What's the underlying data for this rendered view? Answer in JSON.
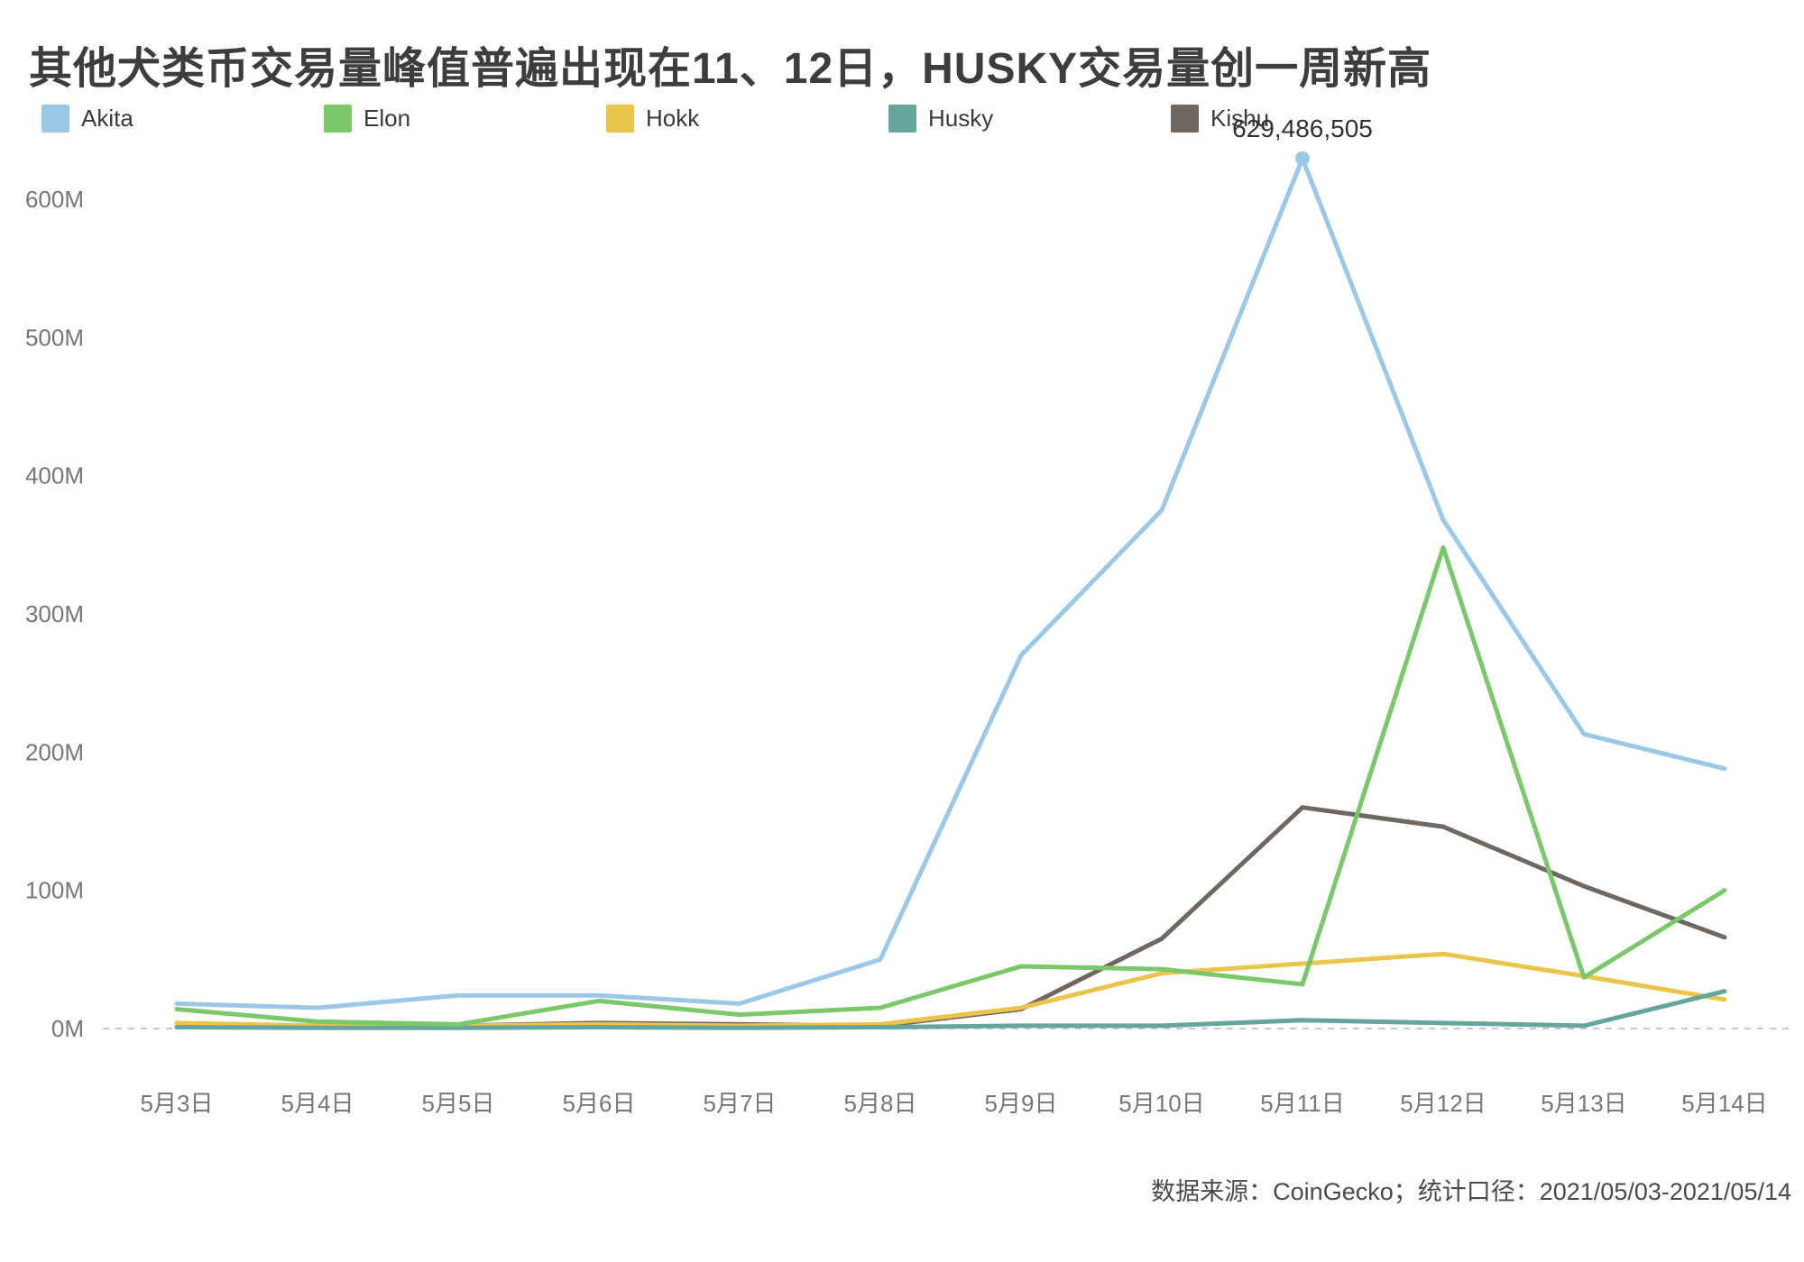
{
  "page": {
    "title": "其他犬类币交易量峰值普遍出现在11、12日，HUSKY交易量创一周新高",
    "source_note": "数据来源：CoinGecko；统计口径：2021/05/03-2021/05/14"
  },
  "chart_data": {
    "type": "line",
    "title": "其他犬类币交易量峰值普遍出现在11、12日，HUSKY交易量创一周新高",
    "unit": "volume (M = millions)",
    "x": [
      "5月3日",
      "5月4日",
      "5月5日",
      "5月6日",
      "5月7日",
      "5月8日",
      "5月9日",
      "5月10日",
      "5月11日",
      "5月12日",
      "5月13日",
      "5月14日"
    ],
    "y_ticks": [
      "0M",
      "100M",
      "200M",
      "300M",
      "400M",
      "500M",
      "600M"
    ],
    "y_tick_values": [
      0,
      100,
      200,
      300,
      400,
      500,
      600
    ],
    "ylim": [
      0,
      650
    ],
    "grid": "zero-dashed-line-only",
    "legend_position": "top",
    "series": [
      {
        "name": "Akita",
        "color": "#9CC8E8",
        "values": [
          18,
          15,
          24,
          24,
          18,
          50,
          270,
          375,
          629.486505,
          368,
          213,
          188
        ]
      },
      {
        "name": "Elon",
        "color": "#7BC86A",
        "values": [
          14,
          5,
          3,
          20,
          10,
          15,
          45,
          43,
          32,
          348,
          37,
          100
        ]
      },
      {
        "name": "Hokk",
        "color": "#E9C54B",
        "values": [
          4,
          2,
          2,
          3,
          2,
          3,
          15,
          40,
          47,
          54,
          38,
          21
        ]
      },
      {
        "name": "Husky",
        "color": "#66A59D",
        "values": [
          1,
          0.5,
          0.5,
          1,
          0.5,
          1,
          2,
          2,
          6,
          4,
          2,
          27
        ]
      },
      {
        "name": "Kishu",
        "color": "#6F6761",
        "values": [
          1,
          1,
          2,
          4,
          3,
          2,
          14,
          65,
          160,
          146,
          103,
          66
        ]
      }
    ],
    "draw_order": [
      "Akita",
      "Kishu",
      "Hokk",
      "Husky",
      "Elon"
    ],
    "annotation": {
      "text": "629,486,505",
      "series": "Akita",
      "x_index": 8,
      "value": 629.486505
    }
  }
}
